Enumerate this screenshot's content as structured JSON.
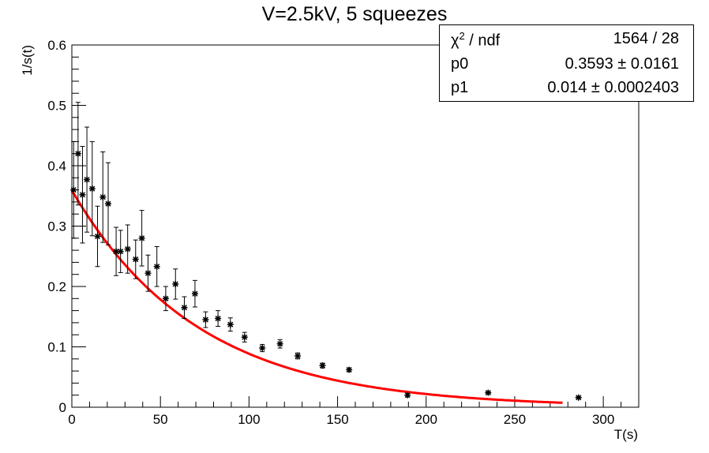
{
  "title": "V=2.5kV, 5 squeezes",
  "stats": {
    "chi2_label": "χ",
    "chi2_sup": "2",
    "chi2_label_rest": " / ndf",
    "chi2_value": "1564 / 28",
    "p0_label": "p0",
    "p0_value": "0.3593 ± 0.0161",
    "p1_label": "p1",
    "p1_value": "0.014 ± 0.0002403"
  },
  "chart_data": {
    "type": "scatter",
    "title": "V=2.5kV, 5 squeezes",
    "xlabel": "T(s)",
    "ylabel": "1/s(t)",
    "xlim": [
      0,
      320
    ],
    "ylim": [
      0,
      0.6
    ],
    "xticks": [
      0,
      50,
      100,
      150,
      200,
      250,
      300
    ],
    "yticks": [
      0,
      0.1,
      0.2,
      0.3,
      0.4,
      0.5,
      0.6
    ],
    "tick_labels_x": [
      "0",
      "50",
      "100",
      "150",
      "200",
      "250",
      "300"
    ],
    "tick_labels_y": [
      "0",
      "0.1",
      "0.2",
      "0.3",
      "0.4",
      "0.5",
      "0.6"
    ],
    "fit_color": "#ff0000",
    "marker_color": "#000000",
    "fit": {
      "function": "p0*exp(-p1*x)",
      "p0": 0.3593,
      "p1": 0.014,
      "x_range": [
        0,
        277
      ]
    },
    "points": [
      {
        "x": 1,
        "y": 0.36,
        "err": 0.08
      },
      {
        "x": 3.5,
        "y": 0.42,
        "err": 0.085
      },
      {
        "x": 6,
        "y": 0.352,
        "err": 0.08
      },
      {
        "x": 8.5,
        "y": 0.377,
        "err": 0.087
      },
      {
        "x": 11.5,
        "y": 0.362,
        "err": 0.078
      },
      {
        "x": 14.5,
        "y": 0.283,
        "err": 0.05
      },
      {
        "x": 17.5,
        "y": 0.348,
        "err": 0.075
      },
      {
        "x": 20.5,
        "y": 0.337,
        "err": 0.068
      },
      {
        "x": 25,
        "y": 0.258,
        "err": 0.04
      },
      {
        "x": 27.5,
        "y": 0.258,
        "err": 0.035
      },
      {
        "x": 31.5,
        "y": 0.262,
        "err": 0.04
      },
      {
        "x": 36,
        "y": 0.245,
        "err": 0.032
      },
      {
        "x": 39.5,
        "y": 0.28,
        "err": 0.046
      },
      {
        "x": 43,
        "y": 0.222,
        "err": 0.03
      },
      {
        "x": 48,
        "y": 0.233,
        "err": 0.033
      },
      {
        "x": 53,
        "y": 0.18,
        "err": 0.02
      },
      {
        "x": 58.5,
        "y": 0.204,
        "err": 0.025
      },
      {
        "x": 63.5,
        "y": 0.165,
        "err": 0.018
      },
      {
        "x": 69.5,
        "y": 0.188,
        "err": 0.022
      },
      {
        "x": 75.5,
        "y": 0.145,
        "err": 0.013
      },
      {
        "x": 82.5,
        "y": 0.147,
        "err": 0.013
      },
      {
        "x": 89.5,
        "y": 0.137,
        "err": 0.011
      },
      {
        "x": 97.5,
        "y": 0.116,
        "err": 0.008
      },
      {
        "x": 107.5,
        "y": 0.098,
        "err": 0.006
      },
      {
        "x": 117.5,
        "y": 0.105,
        "err": 0.007
      },
      {
        "x": 127.5,
        "y": 0.085,
        "err": 0.005
      },
      {
        "x": 141.5,
        "y": 0.069,
        "err": 0.004
      },
      {
        "x": 156.5,
        "y": 0.062,
        "err": 0.003
      },
      {
        "x": 189.5,
        "y": 0.02,
        "err": 0.003
      },
      {
        "x": 235,
        "y": 0.024,
        "err": 0.002
      },
      {
        "x": 286,
        "y": 0.016,
        "err": 0.002
      }
    ]
  }
}
